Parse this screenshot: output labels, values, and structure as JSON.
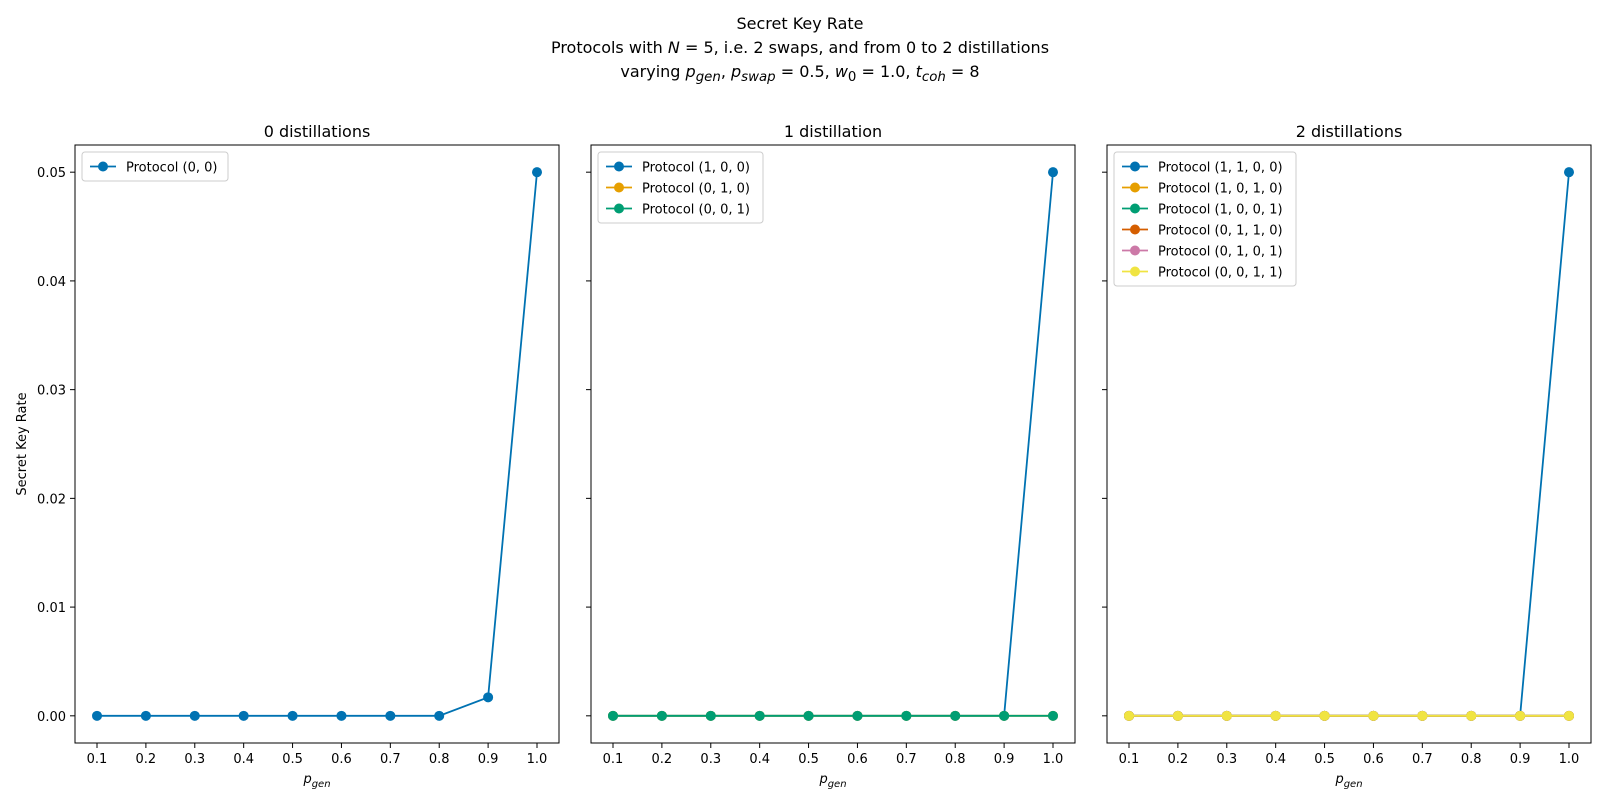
{
  "suptitle": {
    "line1": "Secret Key Rate",
    "line2_prefix": "Protocols with ",
    "line2_n_var": "N",
    "line2_n_eq": " = 5",
    "line2_suffix": ", i.e. 2 swaps, and from 0 to 2 distillations",
    "line3_prefix": "varying ",
    "line3_pgen_var": "p",
    "line3_pgen_sub": "gen",
    "line3_sep1": ", ",
    "line3_pswap_var": "p",
    "line3_pswap_sub": "swap",
    "line3_pswap_eq": " = 0.5, ",
    "line3_w_var": "w",
    "line3_w_sub": "0",
    "line3_w_eq": " = 1.0, ",
    "line3_t_var": "t",
    "line3_t_sub": "coh",
    "line3_t_eq": " = 8"
  },
  "colors": [
    "#0072B2",
    "#E69F00",
    "#009E73",
    "#D55E00",
    "#CC79A7",
    "#F0E442"
  ],
  "chart_data": [
    {
      "type": "line",
      "title": "0 distillations",
      "xlabel_var": "p",
      "xlabel_sub": "gen",
      "ylabel": "Secret Key Rate",
      "x": [
        0.1,
        0.2,
        0.3,
        0.4,
        0.5,
        0.6,
        0.7,
        0.8,
        0.9,
        1.0
      ],
      "xticks": [
        "0.1",
        "0.2",
        "0.3",
        "0.4",
        "0.5",
        "0.6",
        "0.7",
        "0.8",
        "0.9",
        "1.0"
      ],
      "yticks": [
        "0.00",
        "0.01",
        "0.02",
        "0.03",
        "0.04",
        "0.05"
      ],
      "ylim": [
        -0.0025,
        0.0525
      ],
      "legend": "upper left",
      "series": [
        {
          "name": "Protocol (0, 0)",
          "values": [
            0,
            0,
            0,
            0,
            0,
            0,
            0,
            0,
            0.0017,
            0.05
          ]
        }
      ]
    },
    {
      "type": "line",
      "title": "1 distillation",
      "xlabel_var": "p",
      "xlabel_sub": "gen",
      "x": [
        0.1,
        0.2,
        0.3,
        0.4,
        0.5,
        0.6,
        0.7,
        0.8,
        0.9,
        1.0
      ],
      "xticks": [
        "0.1",
        "0.2",
        "0.3",
        "0.4",
        "0.5",
        "0.6",
        "0.7",
        "0.8",
        "0.9",
        "1.0"
      ],
      "ylim": [
        -0.0025,
        0.0525
      ],
      "legend": "upper left",
      "series": [
        {
          "name": "Protocol (1, 0, 0)",
          "values": [
            0,
            0,
            0,
            0,
            0,
            0,
            0,
            0,
            0,
            0.05
          ]
        },
        {
          "name": "Protocol (0, 1, 0)",
          "values": [
            0,
            0,
            0,
            0,
            0,
            0,
            0,
            0,
            0,
            0
          ]
        },
        {
          "name": "Protocol (0, 0, 1)",
          "values": [
            0,
            0,
            0,
            0,
            0,
            0,
            0,
            0,
            0,
            0
          ]
        }
      ]
    },
    {
      "type": "line",
      "title": "2 distillations",
      "xlabel_var": "p",
      "xlabel_sub": "gen",
      "x": [
        0.1,
        0.2,
        0.3,
        0.4,
        0.5,
        0.6,
        0.7,
        0.8,
        0.9,
        1.0
      ],
      "xticks": [
        "0.1",
        "0.2",
        "0.3",
        "0.4",
        "0.5",
        "0.6",
        "0.7",
        "0.8",
        "0.9",
        "1.0"
      ],
      "ylim": [
        -0.0025,
        0.0525
      ],
      "legend": "upper left",
      "series": [
        {
          "name": "Protocol (1, 1, 0, 0)",
          "values": [
            0,
            0,
            0,
            0,
            0,
            0,
            0,
            0,
            0,
            0.05
          ]
        },
        {
          "name": "Protocol (1, 0, 1, 0)",
          "values": [
            0,
            0,
            0,
            0,
            0,
            0,
            0,
            0,
            0,
            0
          ]
        },
        {
          "name": "Protocol (1, 0, 0, 1)",
          "values": [
            0,
            0,
            0,
            0,
            0,
            0,
            0,
            0,
            0,
            0
          ]
        },
        {
          "name": "Protocol (0, 1, 1, 0)",
          "values": [
            0,
            0,
            0,
            0,
            0,
            0,
            0,
            0,
            0,
            0
          ]
        },
        {
          "name": "Protocol (0, 1, 0, 1)",
          "values": [
            0,
            0,
            0,
            0,
            0,
            0,
            0,
            0,
            0,
            0
          ]
        },
        {
          "name": "Protocol (0, 0, 1, 1)",
          "values": [
            0,
            0,
            0,
            0,
            0,
            0,
            0,
            0,
            0,
            0
          ]
        }
      ]
    }
  ]
}
